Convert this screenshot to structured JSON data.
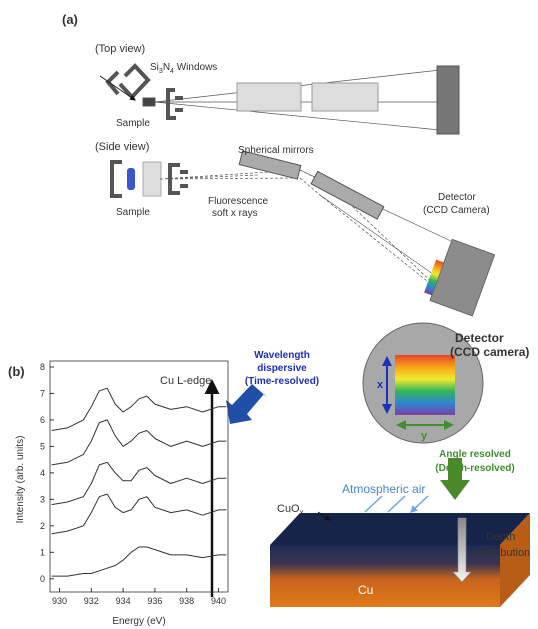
{
  "panel_a": {
    "label": "(a)",
    "top_view": "(Top view)",
    "windows": [
      "Si",
      "3",
      "N",
      "4",
      " Windows"
    ],
    "sample_top": "Sample",
    "side_view": "(Side view)",
    "mirrors": "Spherical mirrors",
    "sample_side": "Sample",
    "fluorescence": [
      "Fluorescence",
      "soft x rays"
    ],
    "detector": [
      "Detector",
      "(CCD Camera)"
    ]
  },
  "panel_b": {
    "label": "(b)",
    "detector": [
      "Detector",
      "(CCD camera)"
    ],
    "wavelength": [
      "Wavelength",
      "dispersive",
      "(Time-resolved)"
    ],
    "axis_x": "x",
    "axis_y": "y",
    "angle": [
      "Angle resolved",
      "(Depth-resolved)"
    ],
    "air": "Atmospheric air",
    "cuox": [
      "CuO",
      "x"
    ],
    "depth": [
      "Depth",
      "distribution"
    ],
    "cu": "Cu"
  },
  "chart_data": {
    "type": "line",
    "title": "Cu L-edge",
    "x_label": "Energy (eV)",
    "y_label": "Intensity (arb. units)",
    "x": [
      929.5,
      930.5,
      931.5,
      932,
      932.5,
      933,
      933.5,
      934,
      934.5,
      935,
      935.5,
      936,
      937,
      938,
      939,
      940,
      940.5
    ],
    "series": [
      {
        "color": "#333333",
        "values": [
          5.6,
          5.7,
          6.0,
          6.5,
          7.1,
          7.2,
          6.6,
          6.3,
          6.5,
          6.8,
          6.9,
          6.6,
          6.4,
          6.5,
          6.3,
          6.5,
          6.5
        ]
      },
      {
        "color": "#333333",
        "values": [
          4.3,
          4.4,
          4.7,
          5.2,
          5.9,
          6.0,
          5.4,
          5.0,
          5.2,
          5.5,
          5.6,
          5.3,
          5.0,
          5.2,
          5.0,
          5.2,
          5.2
        ]
      },
      {
        "color": "#333333",
        "values": [
          2.8,
          2.9,
          3.1,
          3.6,
          4.3,
          4.4,
          4.0,
          3.7,
          3.7,
          4.1,
          4.2,
          3.9,
          3.6,
          3.8,
          3.6,
          3.8,
          3.8
        ]
      },
      {
        "color": "#333333",
        "values": [
          1.7,
          1.8,
          2.0,
          2.5,
          3.1,
          3.2,
          2.7,
          2.5,
          2.6,
          3.0,
          3.1,
          2.7,
          2.5,
          2.6,
          2.4,
          2.6,
          2.6
        ]
      },
      {
        "color": "#333333",
        "values": [
          0.1,
          0.1,
          0.2,
          0.2,
          0.3,
          0.4,
          0.5,
          0.7,
          1.0,
          1.2,
          1.2,
          1.1,
          0.9,
          0.9,
          0.8,
          0.9,
          0.9
        ]
      }
    ],
    "xlim": [
      929.4,
      940.6
    ],
    "ylim": [
      -0.5,
      8
    ],
    "xticks": [
      930,
      932,
      934,
      936,
      938,
      940
    ],
    "yticks": [
      0,
      1,
      2,
      3,
      4,
      5,
      6,
      7,
      8
    ]
  }
}
